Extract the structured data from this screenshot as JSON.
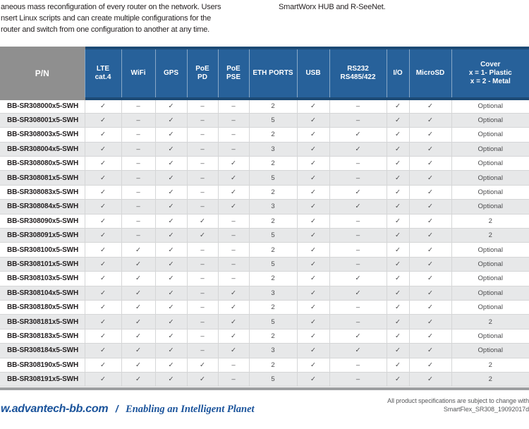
{
  "intro": {
    "left_lines": [
      "aneous mass reconfiguration of every router on the network. Users",
      "nsert Linux scripts and can create multiple configurations for the",
      "router and switch from one configuration to another at any time."
    ],
    "right_line": "SmartWorx HUB and R-SeeNet."
  },
  "table": {
    "columns": [
      {
        "key": "pn",
        "lines": [
          "P/N"
        ]
      },
      {
        "key": "lte",
        "lines": [
          "LTE",
          "cat.4"
        ]
      },
      {
        "key": "wifi",
        "lines": [
          "WiFi"
        ]
      },
      {
        "key": "gps",
        "lines": [
          "GPS"
        ]
      },
      {
        "key": "poe-pd",
        "lines": [
          "PoE",
          "PD"
        ]
      },
      {
        "key": "poe-pse",
        "lines": [
          "PoE",
          "PSE"
        ]
      },
      {
        "key": "eth",
        "lines": [
          "ETH PORTS"
        ]
      },
      {
        "key": "usb",
        "lines": [
          "USB"
        ]
      },
      {
        "key": "rs232",
        "lines": [
          "RS232",
          "RS485/422"
        ]
      },
      {
        "key": "io",
        "lines": [
          "I/O"
        ]
      },
      {
        "key": "microsd",
        "lines": [
          "MicroSD"
        ]
      },
      {
        "key": "cover",
        "lines": [
          "Cover",
          "x = 1- Plastic",
          "x = 2 - Metal"
        ]
      }
    ],
    "check_glyph": "✓",
    "dash_glyph": "–",
    "rows": [
      {
        "cells": [
          "BB-SR308000x5-SWH",
          "✓",
          "–",
          "✓",
          "–",
          "–",
          "2",
          "✓",
          "–",
          "✓",
          "✓",
          "Optional"
        ]
      },
      {
        "cells": [
          "BB-SR308001x5-SWH",
          "✓",
          "–",
          "✓",
          "–",
          "–",
          "5",
          "✓",
          "–",
          "✓",
          "✓",
          "Optional"
        ]
      },
      {
        "cells": [
          "BB-SR308003x5-SWH",
          "✓",
          "–",
          "✓",
          "–",
          "–",
          "2",
          "✓",
          "✓",
          "✓",
          "✓",
          "Optional"
        ]
      },
      {
        "cells": [
          "BB-SR308004x5-SWH",
          "✓",
          "–",
          "✓",
          "–",
          "–",
          "3",
          "✓",
          "✓",
          "✓",
          "✓",
          "Optional"
        ]
      },
      {
        "cells": [
          "BB-SR308080x5-SWH",
          "✓",
          "–",
          "✓",
          "–",
          "✓",
          "2",
          "✓",
          "–",
          "✓",
          "✓",
          "Optional"
        ]
      },
      {
        "cells": [
          "BB-SR308081x5-SWH",
          "✓",
          "–",
          "✓",
          "–",
          "✓",
          "5",
          "✓",
          "–",
          "✓",
          "✓",
          "Optional"
        ]
      },
      {
        "cells": [
          "BB-SR308083x5-SWH",
          "✓",
          "–",
          "✓",
          "–",
          "✓",
          "2",
          "✓",
          "✓",
          "✓",
          "✓",
          "Optional"
        ]
      },
      {
        "cells": [
          "BB-SR308084x5-SWH",
          "✓",
          "–",
          "✓",
          "–",
          "✓",
          "3",
          "✓",
          "✓",
          "✓",
          "✓",
          "Optional"
        ]
      },
      {
        "cells": [
          "BB-SR308090x5-SWH",
          "✓",
          "–",
          "✓",
          "✓",
          "–",
          "2",
          "✓",
          "–",
          "✓",
          "✓",
          "2"
        ]
      },
      {
        "cells": [
          "BB-SR308091x5-SWH",
          "✓",
          "–",
          "✓",
          "✓",
          "–",
          "5",
          "✓",
          "–",
          "✓",
          "✓",
          "2"
        ]
      },
      {
        "cells": [
          "BB-SR308100x5-SWH",
          "✓",
          "✓",
          "✓",
          "–",
          "–",
          "2",
          "✓",
          "–",
          "✓",
          "✓",
          "Optional"
        ]
      },
      {
        "cells": [
          "BB-SR308101x5-SWH",
          "✓",
          "✓",
          "✓",
          "–",
          "–",
          "5",
          "✓",
          "–",
          "✓",
          "✓",
          "Optional"
        ]
      },
      {
        "cells": [
          "BB-SR308103x5-SWH",
          "✓",
          "✓",
          "✓",
          "–",
          "–",
          "2",
          "✓",
          "✓",
          "✓",
          "✓",
          "Optional"
        ]
      },
      {
        "cells": [
          "BB-SR308104x5-SWH",
          "✓",
          "✓",
          "✓",
          "–",
          "✓",
          "3",
          "✓",
          "✓",
          "✓",
          "✓",
          "Optional"
        ]
      },
      {
        "cells": [
          "BB-SR308180x5-SWH",
          "✓",
          "✓",
          "✓",
          "–",
          "✓",
          "2",
          "✓",
          "–",
          "✓",
          "✓",
          "Optional"
        ]
      },
      {
        "cells": [
          "BB-SR308181x5-SWH",
          "✓",
          "✓",
          "✓",
          "–",
          "✓",
          "5",
          "✓",
          "–",
          "✓",
          "✓",
          "2"
        ]
      },
      {
        "cells": [
          "BB-SR308183x5-SWH",
          "✓",
          "✓",
          "✓",
          "–",
          "✓",
          "2",
          "✓",
          "✓",
          "✓",
          "✓",
          "Optional"
        ]
      },
      {
        "cells": [
          "BB-SR308184x5-SWH",
          "✓",
          "✓",
          "✓",
          "–",
          "✓",
          "3",
          "✓",
          "✓",
          "✓",
          "✓",
          "Optional"
        ]
      },
      {
        "cells": [
          "BB-SR308190x5-SWH",
          "✓",
          "✓",
          "✓",
          "✓",
          "–",
          "2",
          "✓",
          "–",
          "✓",
          "✓",
          "2"
        ]
      },
      {
        "cells": [
          "BB-SR308191x5-SWH",
          "✓",
          "✓",
          "✓",
          "✓",
          "–",
          "5",
          "✓",
          "–",
          "✓",
          "✓",
          "2"
        ]
      }
    ]
  },
  "footer": {
    "url": "w.advantech-bb.com",
    "slash": "/",
    "tagline": "Enabling an Intelligent Planet",
    "note_line1": "All product specifications are subject to change with",
    "note_line2": "SmartFlex_SR308_19092017d"
  },
  "colors": {
    "header_blue": "#27619a",
    "header_dark_blue": "#1c4a75",
    "pn_header_gray": "#8f8f8f",
    "row_alt_gray": "#e7e8e9",
    "cell_border": "#d5d6d7",
    "divider_gray": "#9d9fa1",
    "footer_blue": "#1a539b",
    "footer_note_gray": "#58595b"
  }
}
